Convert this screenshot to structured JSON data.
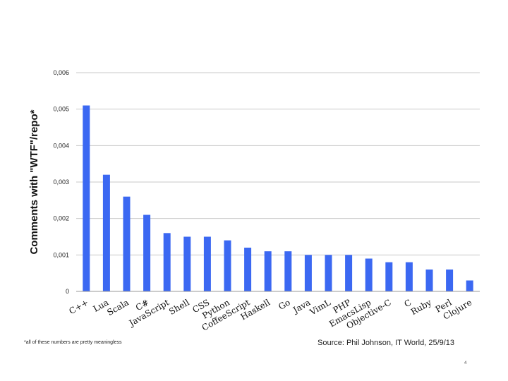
{
  "chart_data": {
    "type": "bar",
    "ylabel": "Comments with \"WTF\"/repo*",
    "xlabel": "",
    "ylim": [
      0,
      0.006
    ],
    "yticks": [
      "0",
      "0,001",
      "0,002",
      "0,003",
      "0,004",
      "0,005",
      "0,006"
    ],
    "grid": true,
    "bar_color": "#3b68f2",
    "categories": [
      "C++",
      "Lua",
      "Scala",
      "C#",
      "JavaScript",
      "Shell",
      "CSS",
      "Python",
      "CoffeeScript",
      "Haskell",
      "Go",
      "Java",
      "VimL",
      "PHP",
      "EmacsLisp",
      "Objective-C",
      "C",
      "Ruby",
      "Perl",
      "Clojure"
    ],
    "values": [
      0.0051,
      0.0032,
      0.0026,
      0.0021,
      0.0016,
      0.0015,
      0.0015,
      0.0014,
      0.0012,
      0.0011,
      0.0011,
      0.001,
      0.001,
      0.001,
      0.0009,
      0.0008,
      0.0008,
      0.0006,
      0.0006,
      0.0003
    ]
  },
  "footnote": "*all of these numbers are pretty meaningless",
  "source": "Source: Phil Johnson, IT World, 25/9/13",
  "page_number": "4"
}
